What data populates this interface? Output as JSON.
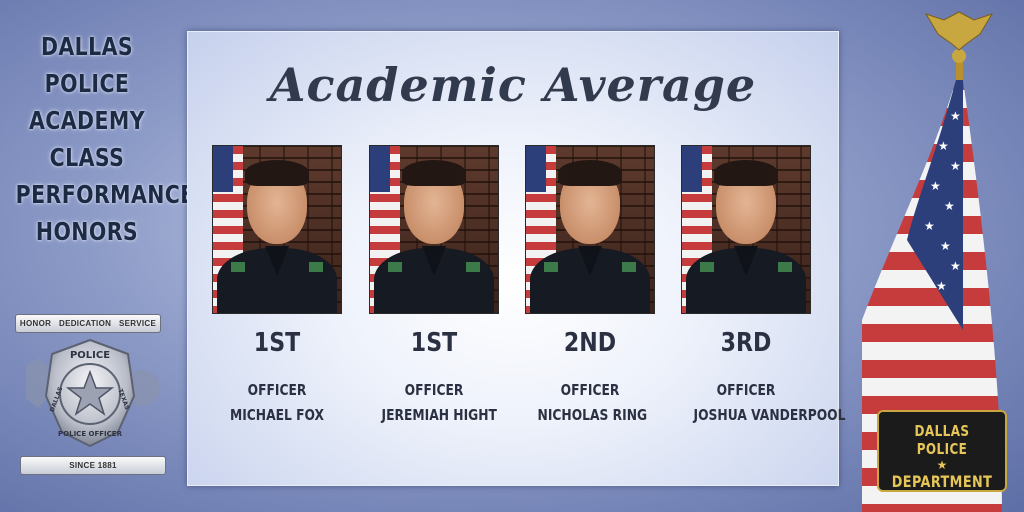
{
  "sidebar": {
    "title_lines": [
      "DALLAS",
      "POLICE",
      "ACADEMY",
      "CLASS",
      "PERFORMANCE",
      "HONORS"
    ],
    "ribbon_top": [
      "HONOR",
      "DEDICATION",
      "SERVICE"
    ],
    "badge_text": {
      "top": "POLICE",
      "left": "DALLAS",
      "right": "TEXAS",
      "bottom": "POLICE OFFICER"
    },
    "ribbon_bottom": "SINCE 1881"
  },
  "panel": {
    "title": "Academic Average",
    "officers": [
      {
        "rank": "1ST",
        "title": "OFFICER",
        "name": "MICHAEL FOX",
        "flag": true
      },
      {
        "rank": "1ST",
        "title": "OFFICER",
        "name": "JEREMIAH HIGHT",
        "flag": true
      },
      {
        "rank": "2ND",
        "title": "OFFICER",
        "name": "NICHOLAS RING",
        "flag": true
      },
      {
        "rank": "3RD",
        "title": "OFFICER",
        "name": "JOSHUA VANDERPOOL",
        "flag": true
      }
    ]
  },
  "department_badge": {
    "line1": "DALLAS POLICE",
    "line2": "DEPARTMENT"
  },
  "colors": {
    "flag_red": "#c63b3b",
    "flag_blue": "#2d3f7a",
    "badge_gold": "#c9a740"
  }
}
